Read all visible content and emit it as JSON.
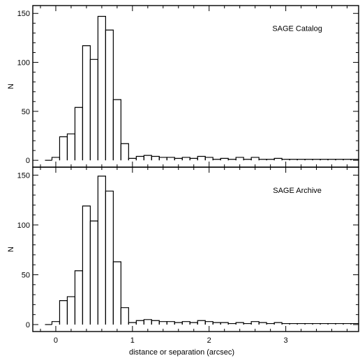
{
  "chart_data": [
    {
      "type": "histogram",
      "annotation": "SAGE Catalog",
      "xlabel": "",
      "ylabel": "N",
      "xlim": [
        -0.3,
        3.95
      ],
      "ylim": [
        -7,
        158
      ],
      "x_ticks": [
        0,
        1,
        2,
        3
      ],
      "y_ticks": [
        0,
        50,
        100,
        150
      ],
      "grid": false,
      "bin_width": 0.1,
      "bin_start": -0.05,
      "counts": [
        3,
        24,
        27,
        54,
        117,
        103,
        147,
        133,
        62,
        17,
        2,
        4,
        5,
        4,
        3,
        3,
        2,
        3,
        2,
        4,
        3,
        1,
        2,
        1,
        3,
        1,
        3,
        1,
        1,
        2,
        1,
        1,
        1,
        1,
        1,
        1,
        1,
        1,
        1,
        1
      ]
    },
    {
      "type": "histogram",
      "annotation": "SAGE Archive",
      "xlabel": "distance or separation (arcsec)",
      "ylabel": "N",
      "xlim": [
        -0.3,
        3.95
      ],
      "ylim": [
        -7,
        158
      ],
      "x_ticks": [
        0,
        1,
        2,
        3
      ],
      "y_ticks": [
        0,
        50,
        100,
        150
      ],
      "grid": false,
      "bin_width": 0.1,
      "bin_start": -0.05,
      "counts": [
        3,
        24,
        28,
        54,
        119,
        104,
        149,
        134,
        63,
        17,
        2,
        4,
        5,
        4,
        3,
        3,
        2,
        3,
        2,
        4,
        3,
        2,
        2,
        1,
        2,
        1,
        3,
        2,
        1,
        2,
        1,
        1,
        1,
        1,
        1,
        1,
        1,
        1,
        1,
        1
      ]
    }
  ]
}
